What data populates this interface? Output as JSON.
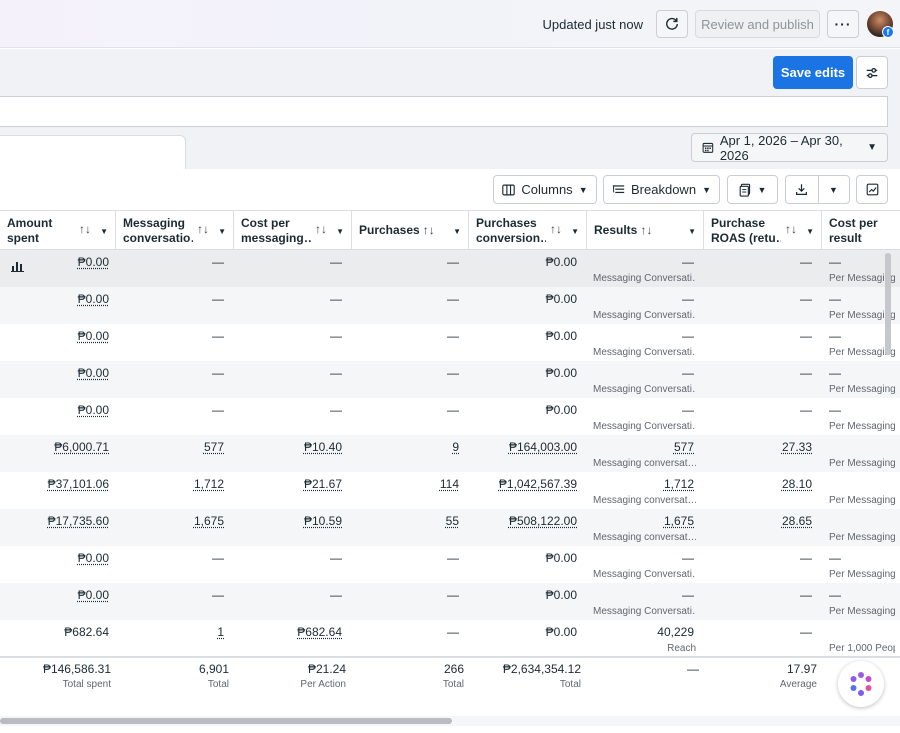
{
  "header": {
    "status": "Updated just now",
    "review_label": "Review and publish",
    "more_label": "···"
  },
  "actions": {
    "save_label": "Save edits"
  },
  "date_range": "Apr 1, 2026 – Apr 30, 2026",
  "toolbar": {
    "columns_label": "Columns",
    "breakdown_label": "Breakdown"
  },
  "columns": [
    {
      "label": "Amount spent",
      "l1": "Amount",
      "l2": "spent"
    },
    {
      "label": "Messaging conversations started",
      "l1": "Messaging",
      "l2": "conversatio…"
    },
    {
      "label": "Cost per messaging conversation",
      "l1": "Cost per",
      "l2": "messaging…"
    },
    {
      "label": "Purchases",
      "l1": "Purchases",
      "l2": ""
    },
    {
      "label": "Purchases conversion value",
      "l1": "Purchases",
      "l2": "conversion…"
    },
    {
      "label": "Results",
      "l1": "Results",
      "l2": ""
    },
    {
      "label": "Purchase ROAS (return on ad spend)",
      "l1": "Purchase",
      "l2": "ROAS (retu…"
    },
    {
      "label": "Cost per result",
      "l1": "Cost per",
      "l2": "result"
    }
  ],
  "rows": [
    {
      "spent": "₱0.00",
      "msg": "—",
      "cpm": "—",
      "purch": "—",
      "pcv": "₱0.00",
      "res": "—",
      "res_sub": "Messaging Conversati…",
      "roas": "—",
      "cpr": "—",
      "cpr_sub": "Per Messaging"
    },
    {
      "spent": "₱0.00",
      "msg": "—",
      "cpm": "—",
      "purch": "—",
      "pcv": "₱0.00",
      "res": "—",
      "res_sub": "Messaging Conversati…",
      "roas": "—",
      "cpr": "—",
      "cpr_sub": "Per Messaging"
    },
    {
      "spent": "₱0.00",
      "msg": "—",
      "cpm": "—",
      "purch": "—",
      "pcv": "₱0.00",
      "res": "—",
      "res_sub": "Messaging Conversati…",
      "roas": "—",
      "cpr": "—",
      "cpr_sub": "Per Messaging"
    },
    {
      "spent": "₱0.00",
      "msg": "—",
      "cpm": "—",
      "purch": "—",
      "pcv": "₱0.00",
      "res": "—",
      "res_sub": "Messaging Conversati…",
      "roas": "—",
      "cpr": "—",
      "cpr_sub": "Per Messaging"
    },
    {
      "spent": "₱0.00",
      "msg": "—",
      "cpm": "—",
      "purch": "—",
      "pcv": "₱0.00",
      "res": "—",
      "res_sub": "Messaging Conversati…",
      "roas": "—",
      "cpr": "—",
      "cpr_sub": "Per Messaging"
    },
    {
      "spent": "₱6,000.71",
      "msg": "577",
      "cpm": "₱10.40",
      "purch": "9",
      "pcv": "₱164,003.00",
      "res": "577",
      "res_sub": "Messaging conversat…",
      "roas": "27.33",
      "cpr": "",
      "cpr_sub": "Per Messaging"
    },
    {
      "spent": "₱37,101.06",
      "msg": "1,712",
      "cpm": "₱21.67",
      "purch": "114",
      "pcv": "₱1,042,567.39",
      "res": "1,712",
      "res_sub": "Messaging conversat…",
      "roas": "28.10",
      "cpr": "",
      "cpr_sub": "Per Messaging"
    },
    {
      "spent": "₱17,735.60",
      "msg": "1,675",
      "cpm": "₱10.59",
      "purch": "55",
      "pcv": "₱508,122.00",
      "res": "1,675",
      "res_sub": "Messaging conversat…",
      "roas": "28.65",
      "cpr": "",
      "cpr_sub": "Per Messaging"
    },
    {
      "spent": "₱0.00",
      "msg": "—",
      "cpm": "—",
      "purch": "—",
      "pcv": "₱0.00",
      "res": "—",
      "res_sub": "Messaging Conversati…",
      "roas": "—",
      "cpr": "—",
      "cpr_sub": "Per Messaging"
    },
    {
      "spent": "₱0.00",
      "msg": "—",
      "cpm": "—",
      "purch": "—",
      "pcv": "₱0.00",
      "res": "—",
      "res_sub": "Messaging Conversati…",
      "roas": "—",
      "cpr": "—",
      "cpr_sub": "Per Messaging"
    },
    {
      "spent": "₱682.64",
      "msg": "1",
      "cpm": "₱682.64",
      "purch": "—",
      "pcv": "₱0.00",
      "res": "40,229",
      "res_sub": "Reach",
      "roas": "—",
      "cpr": "",
      "cpr_sub": "Per 1,000 Peop"
    }
  ],
  "totals": {
    "spent": "₱146,586.31",
    "spent_sub": "Total spent",
    "msg": "6,901",
    "msg_sub": "Total",
    "cpm": "₱21.24",
    "cpm_sub": "Per Action",
    "purch": "266",
    "purch_sub": "Total",
    "pcv": "₱2,634,354.12",
    "pcv_sub": "Total",
    "res": "—",
    "roas": "17.97",
    "roas_sub": "Average"
  }
}
